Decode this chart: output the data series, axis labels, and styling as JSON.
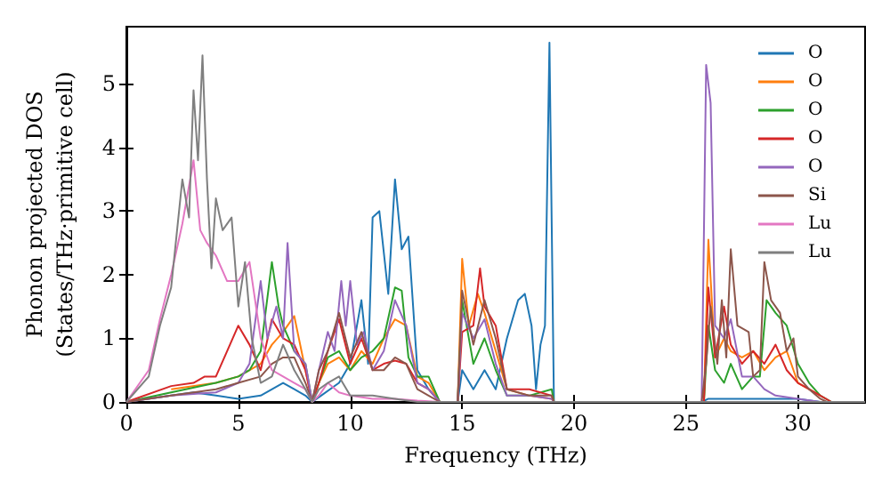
{
  "chart_data": {
    "type": "line",
    "xlabel": "Frequency (THz)",
    "ylabel": "Phonon projected DOS\n(States/THz·primitive cell)",
    "xlim": [
      0,
      33
    ],
    "xticks": [
      0,
      5,
      10,
      15,
      20,
      25,
      30
    ],
    "ylim": [
      0,
      5.9
    ],
    "yticks": [
      0,
      1,
      2,
      3,
      4,
      5
    ],
    "grid": false,
    "legend": "top right",
    "marker": "none",
    "line_style": "solid",
    "series": [
      {
        "name": "O",
        "color": "#1f77b4",
        "x": [
          0,
          2,
          3,
          4,
          5,
          6,
          7,
          7.5,
          8,
          8.3,
          8.7,
          9.5,
          10,
          10.5,
          10.8,
          11,
          11.3,
          11.7,
          12,
          12.3,
          12.6,
          13,
          13.5,
          14,
          14.8,
          15,
          15.5,
          16,
          16.5,
          17,
          17.5,
          17.8,
          18.1,
          18.3,
          18.5,
          18.7,
          18.9,
          19.1,
          25.7,
          26,
          28,
          30,
          31,
          33
        ],
        "values": [
          0,
          0.1,
          0.15,
          0.1,
          0.05,
          0.1,
          0.3,
          0.2,
          0.1,
          0,
          0.1,
          0.3,
          0.6,
          1.6,
          0.6,
          2.9,
          3.0,
          1.7,
          3.5,
          2.4,
          2.6,
          0.5,
          0.2,
          0,
          0,
          0.5,
          0.2,
          0.5,
          0.2,
          1.0,
          1.6,
          1.7,
          1.2,
          0.2,
          0.9,
          1.2,
          5.65,
          0,
          0,
          0.05,
          0.05,
          0.05,
          0,
          0
        ]
      },
      {
        "name": "O",
        "color": "#ff7f0e",
        "x": [
          2,
          4,
          5,
          6,
          6.5,
          7,
          7.5,
          8,
          8.3,
          8.6,
          9,
          9.5,
          10,
          10.5,
          11,
          11.5,
          12,
          12.5,
          13,
          13.5,
          14,
          14.8,
          15,
          15.3,
          15.7,
          16,
          16.5,
          17,
          18,
          19,
          19.1,
          25.8,
          26,
          26.3,
          26.7,
          27,
          27.5,
          28,
          28.5,
          29,
          29.5,
          30,
          30.5,
          31
        ],
        "values": [
          0.2,
          0.3,
          0.4,
          0.6,
          0.9,
          1.1,
          1.35,
          0.5,
          0,
          0.3,
          0.6,
          0.7,
          0.5,
          0.8,
          0.6,
          1.0,
          1.3,
          1.2,
          0.4,
          0.3,
          0,
          0,
          2.25,
          1.2,
          1.7,
          1.4,
          0.8,
          0.2,
          0.1,
          0.05,
          0,
          0,
          2.55,
          0.7,
          1.0,
          0.8,
          0.7,
          0.8,
          0.5,
          0.7,
          0.8,
          0.3,
          0.2,
          0.1
        ]
      },
      {
        "name": "O",
        "color": "#2ca02c",
        "x": [
          0,
          2,
          4,
          5,
          5.5,
          6,
          6.5,
          6.8,
          7,
          7.5,
          8,
          8.3,
          8.6,
          9,
          9.5,
          10,
          10.5,
          11,
          11.5,
          12,
          12.3,
          12.6,
          13,
          13.5,
          14,
          14.8,
          15,
          15.5,
          16,
          16.5,
          17,
          18,
          19,
          19.1,
          25.8,
          26,
          26.3,
          26.7,
          27,
          27.5,
          28,
          28.3,
          28.6,
          29,
          29.5,
          30,
          30.5,
          31,
          31.5,
          33
        ],
        "values": [
          0,
          0.15,
          0.3,
          0.4,
          0.5,
          0.8,
          2.2,
          1.5,
          1.2,
          0.8,
          0.6,
          0,
          0.3,
          0.7,
          0.8,
          0.5,
          0.7,
          0.8,
          1.0,
          1.8,
          1.75,
          0.7,
          0.4,
          0.4,
          0,
          0,
          1.6,
          0.6,
          1.0,
          0.5,
          0.1,
          0.1,
          0.2,
          0,
          0,
          1.2,
          0.5,
          0.3,
          0.6,
          0.2,
          0.4,
          0.4,
          1.6,
          1.4,
          1.2,
          0.6,
          0.3,
          0.1,
          0,
          0
        ]
      },
      {
        "name": "O",
        "color": "#d62728",
        "x": [
          0,
          2,
          3,
          3.5,
          4,
          4.5,
          5,
          5.5,
          6,
          6.5,
          7,
          7.5,
          8,
          8.3,
          8.6,
          9,
          9.5,
          10,
          10.5,
          11,
          11.5,
          12,
          12.5,
          13,
          13.5,
          14,
          14.8,
          15,
          15.5,
          15.8,
          16,
          16.5,
          17,
          18,
          19,
          19.1,
          25.8,
          26,
          26.3,
          26.7,
          27,
          27.5,
          28,
          28.5,
          29,
          29.5,
          30,
          30.5,
          31,
          31.5,
          33
        ],
        "values": [
          0,
          0.25,
          0.3,
          0.4,
          0.4,
          0.8,
          1.2,
          0.9,
          0.5,
          1.3,
          1.0,
          0.9,
          0.5,
          0,
          0.3,
          0.8,
          1.3,
          0.6,
          1.0,
          0.5,
          0.6,
          0.65,
          0.6,
          0.3,
          0.2,
          0,
          0,
          1.1,
          1.2,
          2.1,
          1.5,
          1.2,
          0.2,
          0.2,
          0.1,
          0,
          0,
          1.8,
          0.7,
          1.5,
          0.9,
          0.6,
          0.8,
          0.6,
          0.9,
          0.5,
          0.3,
          0.2,
          0.1,
          0,
          0
        ]
      },
      {
        "name": "O",
        "color": "#9467bd",
        "x": [
          0,
          2,
          4,
          5,
          5.5,
          6,
          6.3,
          6.7,
          7,
          7.2,
          7.5,
          8,
          8.3,
          8.6,
          9,
          9.3,
          9.6,
          9.8,
          10,
          10.3,
          10.6,
          11,
          11.5,
          12,
          12.5,
          13,
          13.5,
          14,
          14.8,
          15,
          15.5,
          16,
          16.5,
          17,
          18,
          19,
          19.1,
          25.7,
          25.9,
          26.1,
          26.3,
          26.7,
          27,
          27.5,
          28,
          28.5,
          29,
          30,
          31,
          33
        ],
        "values": [
          0,
          0.1,
          0.15,
          0.3,
          0.6,
          1.9,
          1.0,
          1.5,
          1.0,
          2.5,
          0.8,
          0.6,
          0,
          0.5,
          1.1,
          0.8,
          1.9,
          1.2,
          1.9,
          0.9,
          1.1,
          0.5,
          0.8,
          1.6,
          1.2,
          0.3,
          0.2,
          0,
          0,
          1.4,
          1.0,
          1.3,
          0.6,
          0.1,
          0.1,
          0.05,
          0,
          0,
          5.3,
          4.7,
          1.2,
          1.0,
          1.3,
          0.4,
          0.4,
          0.2,
          0.1,
          0.05,
          0,
          0
        ]
      },
      {
        "name": "Si",
        "color": "#8c564b",
        "x": [
          0,
          2,
          4,
          5,
          6,
          6.5,
          7,
          7.5,
          8,
          8.3,
          8.6,
          9,
          9.5,
          10,
          10.5,
          11,
          11.5,
          12,
          12.5,
          13,
          13.5,
          14,
          14.8,
          15,
          15.5,
          16,
          16.5,
          17,
          18,
          19,
          19.1,
          25.7,
          25.9,
          26.1,
          26.4,
          26.6,
          26.8,
          27,
          27.3,
          27.8,
          28,
          28.3,
          28.5,
          28.8,
          29.2,
          29.5,
          29.8,
          30,
          30.5,
          31,
          31.3,
          33
        ],
        "values": [
          0,
          0.1,
          0.2,
          0.3,
          0.4,
          0.6,
          0.7,
          0.7,
          0.3,
          0,
          0.5,
          0.8,
          1.4,
          0.7,
          1.1,
          0.5,
          0.5,
          0.7,
          0.6,
          0.2,
          0.1,
          0,
          0,
          1.75,
          0.9,
          1.6,
          1.0,
          0.2,
          0.1,
          0.1,
          0,
          0,
          0.6,
          1.5,
          0.6,
          1.6,
          0.7,
          2.4,
          1.2,
          1.1,
          0.4,
          0.5,
          2.2,
          1.6,
          1.4,
          0.8,
          1.0,
          0.4,
          0.2,
          0.05,
          0,
          0
        ]
      },
      {
        "name": "Lu",
        "color": "#e377c2",
        "x": [
          0,
          1,
          1.5,
          2,
          2.5,
          3,
          3.3,
          3.6,
          4,
          4.5,
          5,
          5.5,
          6,
          6.5,
          7,
          7.5,
          8,
          8.3,
          8.6,
          9,
          9.5,
          10,
          11,
          12,
          13,
          14,
          33
        ],
        "values": [
          0,
          0.5,
          1.3,
          2.0,
          2.8,
          3.8,
          2.7,
          2.5,
          2.3,
          1.9,
          1.9,
          2.2,
          1.0,
          0.5,
          0.4,
          0.3,
          0.2,
          0,
          0.1,
          0.3,
          0.15,
          0.1,
          0.05,
          0.05,
          0.02,
          0,
          0
        ]
      },
      {
        "name": "Lu",
        "color": "#7f7f7f",
        "x": [
          0,
          1,
          1.5,
          2,
          2.5,
          2.8,
          3,
          3.2,
          3.4,
          3.6,
          3.8,
          4,
          4.3,
          4.7,
          5,
          5.3,
          5.6,
          6,
          6.5,
          7,
          7.5,
          8,
          8.3,
          8.6,
          9,
          9.5,
          10,
          11,
          12,
          13,
          33
        ],
        "values": [
          0,
          0.4,
          1.2,
          1.8,
          3.5,
          2.9,
          4.9,
          3.8,
          5.45,
          3.5,
          2.1,
          3.2,
          2.7,
          2.9,
          1.5,
          2.2,
          1.0,
          0.3,
          0.4,
          0.9,
          0.5,
          0.2,
          0,
          0.2,
          0.3,
          0.4,
          0.1,
          0.1,
          0.05,
          0,
          0
        ]
      }
    ]
  }
}
